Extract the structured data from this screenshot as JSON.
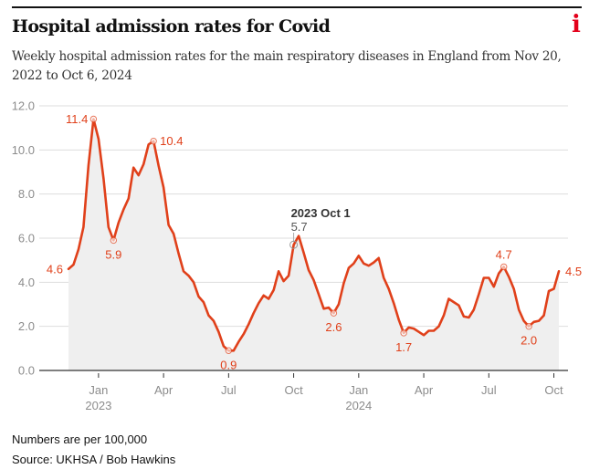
{
  "header": {
    "title": "Hospital admission rates for Covid",
    "subtitle": "Weekly hospital admission rates for the main respiratory diseases in England from Nov 20, 2022 to Oct 6, 2024",
    "brand_icon": "i-logo-icon",
    "brand_text": "i"
  },
  "footer": {
    "note": "Numbers are per 100,000",
    "source": "Source: UKHSA / Bob Hawkins"
  },
  "colors": {
    "line": "#e0401a",
    "fill": "#efefef",
    "grid": "#dddddd",
    "axis": "#333333",
    "brand": "#e3001b"
  },
  "chart_data": {
    "type": "area",
    "title": "Hospital admission rates for Covid",
    "xlabel": "",
    "ylabel": "",
    "start_date": "2022-11-20",
    "end_date": "2024-10-06",
    "interval": "weekly",
    "ylim": [
      0,
      12
    ],
    "yticks": [
      {
        "value": 0,
        "label": "0.0"
      },
      {
        "value": 2,
        "label": "2.0"
      },
      {
        "value": 4,
        "label": "4.0"
      },
      {
        "value": 6,
        "label": "6.0"
      },
      {
        "value": 8,
        "label": "8.0"
      },
      {
        "value": 10,
        "label": "10.0"
      },
      {
        "value": 12,
        "label": "12.0"
      }
    ],
    "xticks": [
      {
        "week": 6,
        "label": "Jan",
        "sublabel": "2023"
      },
      {
        "week": 19,
        "label": "Apr",
        "sublabel": ""
      },
      {
        "week": 32,
        "label": "Jul",
        "sublabel": ""
      },
      {
        "week": 45,
        "label": "Oct",
        "sublabel": ""
      },
      {
        "week": 58,
        "label": "Jan",
        "sublabel": "2024"
      },
      {
        "week": 71,
        "label": "Apr",
        "sublabel": ""
      },
      {
        "week": 84,
        "label": "Jul",
        "sublabel": ""
      },
      {
        "week": 97,
        "label": "Oct",
        "sublabel": ""
      }
    ],
    "grid": true,
    "values": [
      4.6,
      4.8,
      5.5,
      6.5,
      9.3,
      11.4,
      10.5,
      8.7,
      6.5,
      5.9,
      6.7,
      7.3,
      7.8,
      9.2,
      8.85,
      9.35,
      10.25,
      10.4,
      9.3,
      8.3,
      6.6,
      6.2,
      5.3,
      4.5,
      4.3,
      4.0,
      3.35,
      3.1,
      2.5,
      2.25,
      1.75,
      1.1,
      0.9,
      0.9,
      1.3,
      1.65,
      2.1,
      2.6,
      3.05,
      3.4,
      3.25,
      3.65,
      4.5,
      4.05,
      4.3,
      5.7,
      6.1,
      5.35,
      4.55,
      4.1,
      3.45,
      2.8,
      2.85,
      2.6,
      3.0,
      3.95,
      4.65,
      4.85,
      5.2,
      4.85,
      4.75,
      4.9,
      5.1,
      4.2,
      3.7,
      3.05,
      2.3,
      1.7,
      1.95,
      1.9,
      1.75,
      1.6,
      1.8,
      1.8,
      2.0,
      2.5,
      3.25,
      3.1,
      2.95,
      2.45,
      2.4,
      2.75,
      3.45,
      4.2,
      4.2,
      3.8,
      4.4,
      4.7,
      4.25,
      3.7,
      2.75,
      2.25,
      2.0,
      2.2,
      2.25,
      2.5,
      3.6,
      3.7,
      4.5
    ],
    "labels": [
      {
        "week": 0,
        "label": "4.6",
        "position": "left",
        "marker": false
      },
      {
        "week": 5,
        "label": "11.4",
        "position": "left",
        "marker": true
      },
      {
        "week": 9,
        "label": "5.9",
        "position": "below",
        "marker": true
      },
      {
        "week": 17,
        "label": "10.4",
        "position": "right",
        "marker": true
      },
      {
        "week": 32,
        "label": "0.9",
        "position": "below",
        "marker": true
      },
      {
        "week": 53,
        "label": "2.6",
        "position": "below",
        "marker": true
      },
      {
        "week": 67,
        "label": "1.7",
        "position": "below",
        "marker": true
      },
      {
        "week": 87,
        "label": "4.7",
        "position": "above",
        "marker": true
      },
      {
        "week": 92,
        "label": "2.0",
        "position": "below",
        "marker": true
      },
      {
        "week": 98,
        "label": "4.5",
        "position": "right",
        "marker": false
      }
    ],
    "annotation": {
      "week": 45,
      "title": "2023 Oct 1",
      "value_label": "5.7"
    }
  }
}
